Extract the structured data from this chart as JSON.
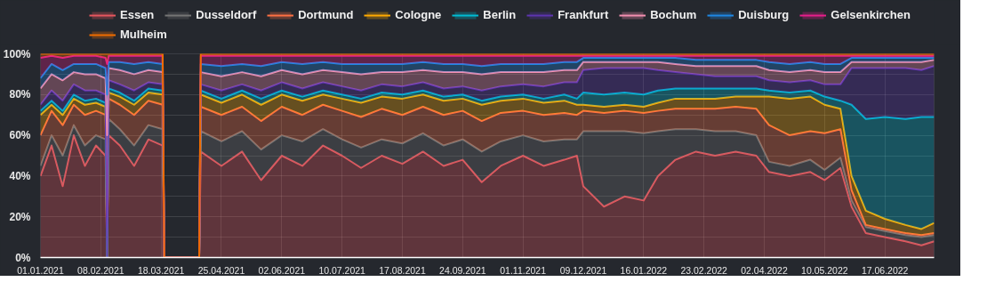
{
  "chart_data": {
    "type": "area",
    "stacked": true,
    "legend": "top",
    "grid": true,
    "x": [
      "2021-01-01",
      "2021-01-08",
      "2021-01-15",
      "2021-01-22",
      "2021-01-29",
      "2021-02-05",
      "2021-02-11",
      "2021-02-12",
      "2021-02-13",
      "2021-02-20",
      "2021-03-01",
      "2021-03-10",
      "2021-03-19",
      "2021-03-20",
      "2021-04-11",
      "2021-04-12",
      "2021-04-25",
      "2021-05-08",
      "2021-05-20",
      "2021-06-02",
      "2021-06-15",
      "2021-06-28",
      "2021-07-10",
      "2021-07-22",
      "2021-08-04",
      "2021-08-17",
      "2021-08-30",
      "2021-09-12",
      "2021-09-24",
      "2021-10-06",
      "2021-10-18",
      "2021-11-01",
      "2021-11-14",
      "2021-11-27",
      "2021-12-05",
      "2021-12-09",
      "2021-12-22",
      "2022-01-04",
      "2022-01-16",
      "2022-01-25",
      "2022-02-05",
      "2022-02-18",
      "2022-03-02",
      "2022-03-15",
      "2022-03-28",
      "2022-04-05",
      "2022-04-18",
      "2022-05-01",
      "2022-05-10",
      "2022-05-20",
      "2022-05-27",
      "2022-06-05",
      "2022-06-17",
      "2022-06-30",
      "2022-07-10",
      "2022-07-18"
    ],
    "series": [
      {
        "name": "Essen",
        "color": "#e8575e",
        "values": [
          40,
          55,
          35,
          60,
          45,
          55,
          50,
          0,
          60,
          55,
          45,
          58,
          55,
          0,
          0,
          52,
          45,
          52,
          38,
          50,
          45,
          55,
          50,
          44,
          50,
          46,
          52,
          45,
          48,
          37,
          45,
          50,
          45,
          48,
          50,
          35,
          25,
          30,
          28,
          40,
          48,
          52,
          50,
          52,
          50,
          42,
          40,
          42,
          38,
          44,
          25,
          12,
          10,
          8,
          6,
          8
        ]
      },
      {
        "name": "Dusseldorf",
        "color": "#757575",
        "values": [
          5,
          5,
          15,
          5,
          10,
          5,
          8,
          0,
          8,
          8,
          10,
          7,
          8,
          0,
          0,
          10,
          12,
          10,
          15,
          10,
          12,
          8,
          8,
          10,
          8,
          10,
          9,
          10,
          10,
          15,
          12,
          10,
          12,
          10,
          8,
          27,
          37,
          32,
          33,
          22,
          15,
          11,
          12,
          10,
          10,
          5,
          5,
          6,
          5,
          5,
          3,
          3,
          3,
          3,
          4,
          3
        ]
      },
      {
        "name": "Dortmund",
        "color": "#ff7043",
        "values": [
          15,
          12,
          15,
          10,
          15,
          12,
          12,
          0,
          10,
          12,
          15,
          12,
          12,
          0,
          0,
          12,
          13,
          12,
          14,
          14,
          13,
          12,
          14,
          15,
          15,
          14,
          13,
          15,
          14,
          15,
          14,
          12,
          13,
          13,
          12,
          10,
          9,
          10,
          10,
          10,
          10,
          10,
          11,
          12,
          13,
          18,
          15,
          14,
          18,
          14,
          5,
          1,
          1,
          1,
          1,
          1
        ]
      },
      {
        "name": "Cologne",
        "color": "#ffab00",
        "values": [
          10,
          3,
          5,
          3,
          5,
          4,
          4,
          0,
          3,
          4,
          5,
          4,
          5,
          0,
          0,
          6,
          6,
          6,
          8,
          6,
          7,
          5,
          6,
          7,
          6,
          8,
          6,
          7,
          6,
          8,
          6,
          6,
          6,
          6,
          5,
          3,
          3,
          3,
          3,
          4,
          5,
          5,
          5,
          5,
          6,
          14,
          18,
          17,
          14,
          10,
          7,
          7,
          5,
          4,
          3,
          5
        ]
      },
      {
        "name": "Berlin",
        "color": "#00bcd4",
        "values": [
          2,
          2,
          2,
          2,
          2,
          2,
          2,
          0,
          2,
          2,
          2,
          2,
          2,
          0,
          0,
          2,
          2,
          2,
          3,
          2,
          2,
          2,
          2,
          2,
          2,
          2,
          2,
          2,
          2,
          2,
          2,
          2,
          2,
          3,
          3,
          6,
          6,
          6,
          6,
          6,
          5,
          5,
          5,
          4,
          4,
          3,
          3,
          3,
          4,
          4,
          35,
          45,
          50,
          52,
          55,
          52
        ]
      },
      {
        "name": "Frankfurt",
        "color": "#5e35b1",
        "values": [
          3,
          5,
          5,
          5,
          5,
          4,
          4,
          0,
          4,
          4,
          5,
          3,
          3,
          0,
          0,
          3,
          4,
          3,
          4,
          4,
          4,
          4,
          4,
          4,
          4,
          4,
          4,
          4,
          4,
          5,
          5,
          5,
          6,
          6,
          8,
          11,
          13,
          12,
          13,
          10,
          8,
          7,
          6,
          6,
          6,
          5,
          5,
          5,
          6,
          8,
          18,
          25,
          24,
          25,
          23,
          25
        ]
      },
      {
        "name": "Bochum",
        "color": "#f48fb1",
        "values": [
          8,
          8,
          10,
          6,
          8,
          8,
          8,
          60,
          6,
          7,
          8,
          6,
          6,
          0,
          0,
          6,
          7,
          6,
          7,
          6,
          7,
          6,
          7,
          8,
          6,
          7,
          6,
          8,
          7,
          8,
          7,
          6,
          7,
          6,
          6,
          4,
          3,
          3,
          3,
          4,
          4,
          4,
          5,
          5,
          5,
          5,
          5,
          5,
          6,
          6,
          3,
          3,
          3,
          3,
          4,
          3
        ]
      },
      {
        "name": "Duisburg",
        "color": "#1e88e5",
        "values": [
          5,
          5,
          5,
          4,
          5,
          5,
          5,
          20,
          3,
          4,
          5,
          4,
          4,
          0,
          0,
          4,
          5,
          4,
          5,
          4,
          5,
          4,
          4,
          5,
          4,
          4,
          4,
          4,
          4,
          4,
          4,
          4,
          4,
          4,
          4,
          2,
          2,
          2,
          2,
          2,
          3,
          3,
          3,
          3,
          3,
          4,
          4,
          4,
          4,
          4,
          2,
          2,
          2,
          2,
          2,
          1
        ]
      },
      {
        "name": "Gelsenkirchen",
        "color": "#e91e8c",
        "values": [
          10,
          4,
          6,
          4,
          4,
          4,
          5,
          15,
          3,
          3,
          4,
          3,
          4,
          0,
          0,
          4,
          5,
          4,
          5,
          3,
          4,
          3,
          4,
          4,
          4,
          4,
          3,
          4,
          4,
          5,
          4,
          4,
          4,
          3,
          3,
          1,
          1,
          1,
          1,
          1,
          1,
          2,
          2,
          2,
          2,
          3,
          4,
          3,
          4,
          4,
          1,
          1,
          1,
          1,
          1,
          1
        ]
      },
      {
        "name": "Mulheim",
        "color": "#ef6c00",
        "values": [
          2,
          1,
          2,
          1,
          1,
          1,
          2,
          5,
          1,
          1,
          1,
          1,
          1,
          0,
          0,
          1,
          1,
          1,
          1,
          1,
          1,
          1,
          1,
          1,
          1,
          1,
          1,
          1,
          1,
          1,
          1,
          1,
          1,
          1,
          1,
          1,
          1,
          1,
          1,
          1,
          1,
          1,
          1,
          1,
          1,
          1,
          1,
          1,
          1,
          1,
          1,
          1,
          1,
          1,
          1,
          1
        ]
      }
    ],
    "xlim": [
      "2021-01-01",
      "2022-07-18"
    ],
    "xticks": [
      {
        "value": "2021-01-01",
        "label": "01.01.2021"
      },
      {
        "value": "2021-02-08",
        "label": "08.02.2021"
      },
      {
        "value": "2021-03-18",
        "label": "18.03.2021"
      },
      {
        "value": "2021-04-25",
        "label": "25.04.2021"
      },
      {
        "value": "2021-06-02",
        "label": "02.06.2021"
      },
      {
        "value": "2021-07-10",
        "label": "10.07.2021"
      },
      {
        "value": "2021-08-17",
        "label": "17.08.2021"
      },
      {
        "value": "2021-09-24",
        "label": "24.09.2021"
      },
      {
        "value": "2021-11-01",
        "label": "01.11.2021"
      },
      {
        "value": "2021-12-09",
        "label": "09.12.2021"
      },
      {
        "value": "2022-01-16",
        "label": "16.01.2022"
      },
      {
        "value": "2022-02-23",
        "label": "23.02.2022"
      },
      {
        "value": "2022-04-02",
        "label": "02.04.2022"
      },
      {
        "value": "2022-05-10",
        "label": "10.05.2022"
      },
      {
        "value": "2022-06-17",
        "label": "17.06.2022"
      }
    ],
    "ylim": [
      0,
      100
    ],
    "yticks": [
      {
        "value": 0,
        "label": "0%"
      },
      {
        "value": 10,
        "label": null
      },
      {
        "value": 20,
        "label": "20%"
      },
      {
        "value": 30,
        "label": null
      },
      {
        "value": 40,
        "label": "40%"
      },
      {
        "value": 50,
        "label": null
      },
      {
        "value": 60,
        "label": "60%"
      },
      {
        "value": 70,
        "label": null
      },
      {
        "value": 80,
        "label": "80%"
      },
      {
        "value": 90,
        "label": null
      },
      {
        "value": 100,
        "label": "100%"
      }
    ]
  }
}
